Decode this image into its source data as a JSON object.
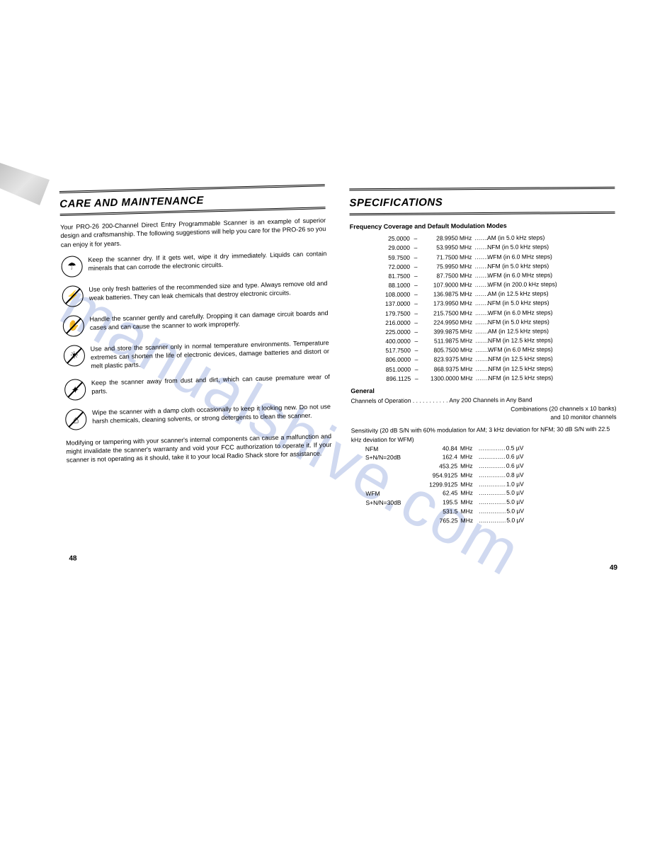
{
  "left": {
    "title": "CARE AND MAINTENANCE",
    "intro": "Your PRO-26 200-Channel Direct Entry Programmable Scanner is an example of superior design and craftsmanship. The following suggestions will help you care for the PRO-26 so you can enjoy it for years.",
    "tips": [
      {
        "icon": "☂",
        "text": "Keep the scanner dry. If it gets wet, wipe it dry immediately. Liquids can contain minerals that can corrode the electronic circuits."
      },
      {
        "icon": "⚡",
        "slash": true,
        "text": "Use only fresh batteries of the recommended size and type. Always remove old and weak batteries. They can leak chemicals that destroy electronic circuits."
      },
      {
        "icon": "✋",
        "slash": true,
        "text": "Handle the scanner gently and carefully. Dropping it can damage circuit boards and cases and can cause the scanner to work improperly."
      },
      {
        "icon": "☀",
        "slash": true,
        "text": "Use and store the scanner only in normal temperature environments. Temperature extremes can shorten the life of electronic devices, damage batteries and distort or melt plastic parts."
      },
      {
        "icon": "✦",
        "slash": true,
        "text": "Keep the scanner away from dust and dirt, which can cause premature wear of parts."
      },
      {
        "icon": "⌂",
        "slash": true,
        "text": "Wipe the scanner with a damp cloth occasionally to keep it looking new. Do not use harsh chemicals, cleaning solvents, or strong detergents to clean the scanner."
      }
    ],
    "closing": "Modifying or tampering with your scanner's internal components can cause a malfunction and might invalidate the scanner's warranty and void your FCC authorization to operate it. If your scanner is not operating as it should, take it to your local Radio Shack store for assistance.",
    "pageNum": "48"
  },
  "right": {
    "title": "SPECIFICATIONS",
    "freqHeader": "Frequency Coverage and Default Modulation Modes",
    "freq": [
      {
        "from": "25.0000",
        "to": "28.9950",
        "mode": "AM (in 5.0 kHz steps)"
      },
      {
        "from": "29.0000",
        "to": "53.9950",
        "mode": "NFM (in 5.0 kHz steps)"
      },
      {
        "from": "59.7500",
        "to": "71.7500",
        "mode": "WFM (in 6.0 MHz steps)"
      },
      {
        "from": "72.0000",
        "to": "75.9950",
        "mode": "NFM (in 5.0 kHz steps)"
      },
      {
        "from": "81.7500",
        "to": "87.7500",
        "mode": "WFM (in 6.0 MHz steps)"
      },
      {
        "from": "88.1000",
        "to": "107.9000",
        "mode": "WFM (in 200.0 kHz steps)"
      },
      {
        "from": "108.0000",
        "to": "136.9875",
        "mode": "AM (in 12.5 kHz steps)"
      },
      {
        "from": "137.0000",
        "to": "173.9950",
        "mode": "NFM (in 5.0 kHz steps)"
      },
      {
        "from": "179.7500",
        "to": "215.7500",
        "mode": "WFM (in 6.0 MHz steps)"
      },
      {
        "from": "216.0000",
        "to": "224.9950",
        "mode": "NFM (in 5.0 kHz steps)"
      },
      {
        "from": "225.0000",
        "to": "399.9875",
        "mode": "AM (in 12.5 kHz steps)"
      },
      {
        "from": "400.0000",
        "to": "511.9875",
        "mode": "NFM (in 12.5 kHz steps)"
      },
      {
        "from": "517.7500",
        "to": "805.7500",
        "mode": "WFM (in 6.0 MHz steps)"
      },
      {
        "from": "806.0000",
        "to": "823.9375",
        "mode": "NFM (in 12.5 kHz steps)"
      },
      {
        "from": "851.0000",
        "to": "868.9375",
        "mode": "NFM (in 12.5 kHz steps)"
      },
      {
        "from": "896.1125",
        "to": "1300.0000",
        "mode": "NFM (in 12.5 kHz steps)"
      }
    ],
    "generalLabel": "General",
    "channelsLine1": "Channels of Operation . . . . . . . . . . . Any 200 Channels in Any Band",
    "channelsLine2": "Combinations (20 channels x 10 banks)",
    "channelsLine3": "and 10 monitor channels",
    "sensHeader": "Sensitivity (20 dB S/N with 60% modulation for AM; 3 kHz deviation for NFM; 30 dB S/N with 22.5 kHz deviation for WFM)",
    "sens": [
      {
        "label": "NFM",
        "freq": "40.84",
        "unit": "MHz",
        "val": "0.5 µV"
      },
      {
        "label": "S+N/N=20dB",
        "freq": "162.4",
        "unit": "MHz",
        "val": "0.6 µV"
      },
      {
        "label": "",
        "freq": "453.25",
        "unit": "MHz",
        "val": "0.6 µV"
      },
      {
        "label": "",
        "freq": "954.9125",
        "unit": "MHz",
        "val": "0.8 µV"
      },
      {
        "label": "",
        "freq": "1299.9125",
        "unit": "MHz",
        "val": "1.0 µV"
      },
      {
        "label": "WFM",
        "freq": "62.45",
        "unit": "MHz",
        "val": "5.0 µV"
      },
      {
        "label": "S+N/N=30dB",
        "freq": "195.5",
        "unit": "MHz",
        "val": "5.0 µV"
      },
      {
        "label": "",
        "freq": "531.5",
        "unit": "MHz",
        "val": "5.0 µV"
      },
      {
        "label": "",
        "freq": "765.25",
        "unit": "MHz",
        "val": "5.0 µV"
      }
    ],
    "pageNum": "49"
  },
  "watermark": "manualshive.com"
}
